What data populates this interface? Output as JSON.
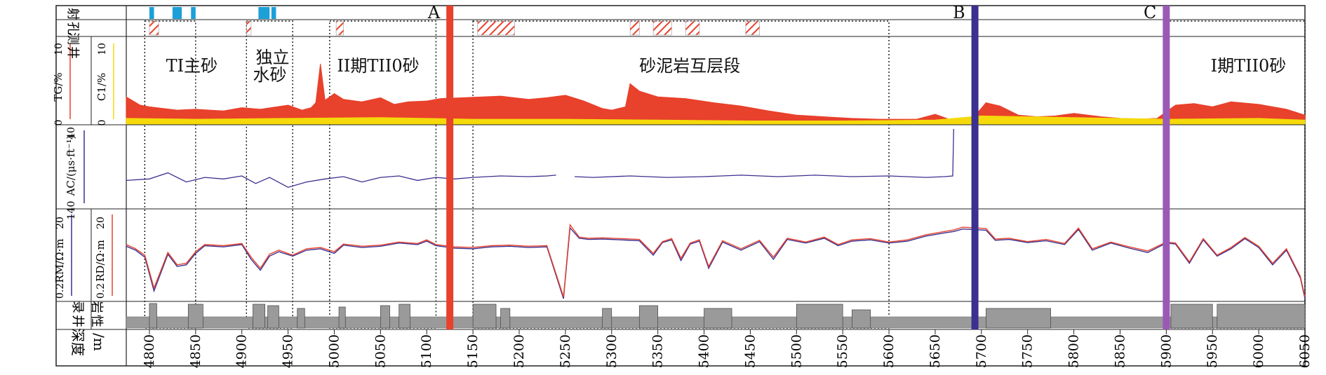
{
  "track_labels": {
    "perforation": [
      "射",
      "孔"
    ],
    "test": [
      "测",
      "井"
    ],
    "gas_left": "TG/%",
    "gas_right": "C1/%",
    "gas_left_min": "0",
    "gas_left_max": "10",
    "gas_right_min": "0",
    "gas_right_max": "10",
    "ac": "AC/(μs·ft⁻¹)",
    "ac_min": "140",
    "ac_max": "40",
    "res_left": "RM/Ω·m",
    "res_right": "RD/Ω·m",
    "res_min": "0.2",
    "res_max": "20",
    "lith": [
      "录",
      "井",
      "岩",
      "性"
    ],
    "depth": [
      "深度",
      "/m"
    ]
  },
  "markers": [
    {
      "label": "A",
      "depth": 5125,
      "color": "#e8412c"
    },
    {
      "label": "B",
      "depth": 5693,
      "color": "#3b2f8f"
    },
    {
      "label": "C",
      "depth": 5900,
      "color": "#9b59b6"
    }
  ],
  "zone_labels": [
    {
      "text": "TI主砂",
      "depth": 4818
    },
    {
      "text": "独立",
      "depth": 4915
    },
    {
      "text": "水砂",
      "depth": 4912
    },
    {
      "text": "II期TII0砂",
      "depth": 5003
    },
    {
      "text": "砂泥岩互层段",
      "depth": 5330
    },
    {
      "text": "I期TII0砂",
      "depth": 5948
    }
  ],
  "colors": {
    "tg": "#e8412c",
    "c1": "#f5d90a",
    "ac": "#3b2f8f",
    "rm": "#3b2f8f",
    "rd": "#e8412c",
    "perf": "#1ba0d8",
    "lith": "#9a9a9a",
    "grid": "#b5b5b5"
  },
  "chart_data": {
    "type": "line",
    "x_label": "深度/m",
    "x_range": [
      4775,
      6050
    ],
    "x_ticks": [
      4800,
      4850,
      4900,
      4950,
      5000,
      5050,
      5100,
      5150,
      5200,
      5250,
      5300,
      5350,
      5400,
      5450,
      5500,
      5550,
      5600,
      5650,
      5700,
      5750,
      5800,
      5850,
      5900,
      5950,
      6000,
      6050
    ],
    "zones": [
      [
        4795,
        4850
      ],
      [
        4905,
        4955
      ],
      [
        4995,
        5110
      ],
      [
        5150,
        5600
      ],
      [
        5900,
        6050
      ]
    ],
    "perforations": [
      [
        4800,
        4805
      ],
      [
        4825,
        4835
      ],
      [
        4845,
        4850
      ],
      [
        4918,
        4930
      ],
      [
        4932,
        4937
      ]
    ],
    "test_intervals": [
      [
        4800,
        4810
      ],
      [
        4905,
        4910
      ],
      [
        5002,
        5010
      ],
      [
        5155,
        5195
      ],
      [
        5320,
        5330
      ],
      [
        5345,
        5365
      ],
      [
        5380,
        5395
      ],
      [
        5445,
        5460
      ]
    ],
    "series": [
      {
        "name": "TG",
        "x": [
          4775,
          4790,
          4800,
          4815,
          4830,
          4850,
          4880,
          4900,
          4920,
          4950,
          4965,
          4975,
          4980,
          4985,
          4990,
          5000,
          5010,
          5030,
          5050,
          5065,
          5080,
          5100,
          5115,
          5140,
          5180,
          5210,
          5230,
          5250,
          5270,
          5290,
          5300,
          5315,
          5320,
          5330,
          5350,
          5380,
          5410,
          5440,
          5470,
          5500,
          5530,
          5560,
          5590,
          5610,
          5630,
          5650,
          5665,
          5680,
          5690,
          5705,
          5720,
          5740,
          5760,
          5780,
          5800,
          5830,
          5850,
          5870,
          5890,
          5910,
          5930,
          5950,
          5970,
          6000,
          6030,
          6050
        ],
        "values": [
          3.2,
          2.2,
          2.0,
          1.8,
          1.6,
          1.7,
          1.5,
          1.9,
          1.7,
          2.2,
          1.6,
          1.9,
          2.5,
          7.2,
          2.8,
          3.6,
          2.9,
          2.6,
          3.1,
          2.3,
          2.6,
          2.7,
          3.0,
          3.1,
          3.3,
          2.9,
          3.1,
          3.4,
          2.7,
          1.8,
          1.6,
          2.0,
          4.8,
          3.9,
          3.2,
          3.0,
          2.5,
          2.1,
          1.5,
          1.0,
          0.8,
          0.6,
          0.5,
          0.5,
          0.5,
          1.1,
          0.5,
          0.5,
          0.5,
          2.5,
          2.1,
          1.0,
          0.8,
          0.9,
          1.2,
          0.8,
          0.6,
          0.5,
          0.6,
          2.2,
          2.4,
          2.0,
          2.6,
          2.3,
          1.7,
          1.0
        ]
      },
      {
        "name": "C1",
        "x": [
          4775,
          4850,
          4950,
          5050,
          5150,
          5250,
          5350,
          5450,
          5550,
          5650,
          5700,
          5800,
          5900,
          6000,
          6050
        ],
        "values": [
          0.6,
          0.5,
          0.6,
          0.7,
          0.5,
          0.5,
          0.4,
          0.3,
          0.3,
          0.4,
          0.9,
          0.7,
          0.5,
          0.6,
          0.4
        ]
      },
      {
        "name": "AC",
        "x": [
          4775,
          4800,
          4820,
          4840,
          4860,
          4880,
          4900,
          4915,
          4930,
          4950,
          4970,
          4990,
          5010,
          5030,
          5050,
          5070,
          5090,
          5110,
          5130,
          5150,
          5180,
          5210,
          5230,
          5240,
          5250,
          5260,
          5280,
          5320,
          5360,
          5400,
          5440,
          5480,
          5520,
          5560,
          5600,
          5640,
          5660,
          5669,
          5670
        ],
        "values": [
          108,
          106,
          98,
          110,
          104,
          106,
          102,
          112,
          104,
          117,
          110,
          106,
          103,
          110,
          104,
          102,
          108,
          104,
          106,
          104,
          102,
          103,
          102,
          101,
          null,
          103,
          104,
          102,
          104,
          103,
          101,
          103,
          101,
          103,
          102,
          104,
          103,
          102,
          40
        ]
      },
      {
        "name": "RM",
        "x": [
          4775,
          4785,
          4795,
          4805,
          4820,
          4830,
          4840,
          4850,
          4860,
          4880,
          4900,
          4910,
          4920,
          4930,
          4940,
          4955,
          4970,
          4985,
          5000,
          5010,
          5030,
          5050,
          5070,
          5090,
          5100,
          5110,
          5130,
          5150,
          5170,
          5190,
          5210,
          5230,
          5248,
          5255,
          5265,
          5275,
          5290,
          5310,
          5330,
          5345,
          5355,
          5365,
          5375,
          5385,
          5395,
          5405,
          5420,
          5440,
          5460,
          5475,
          5490,
          5510,
          5530,
          5545,
          5560,
          5580,
          5600,
          5620,
          5640,
          5660,
          5670,
          5680,
          5705,
          5715,
          5730,
          5750,
          5770,
          5790,
          5805,
          5820,
          5840,
          5860,
          5880,
          5900,
          5910,
          5925,
          5940,
          5955,
          5970,
          5985,
          6000,
          6015,
          6030,
          6045,
          6050
        ],
        "values": [
          3.2,
          2.6,
          1.8,
          0.3,
          2.1,
          1.1,
          1.2,
          2.2,
          3.3,
          3.1,
          3.5,
          1.6,
          0.9,
          1.9,
          2.4,
          1.9,
          2.6,
          2.8,
          2.2,
          3.4,
          3.0,
          3.2,
          3.8,
          3.5,
          4.2,
          3.3,
          2.9,
          2.8,
          3.1,
          3.2,
          3.0,
          3.1,
          0.2,
          8.5,
          4.9,
          4.6,
          4.7,
          4.5,
          4.3,
          2.0,
          3.9,
          4.5,
          1.5,
          3.6,
          4.2,
          1.0,
          4.0,
          2.6,
          4.1,
          1.6,
          4.6,
          3.8,
          4.9,
          3.3,
          4.2,
          4.5,
          3.8,
          4.2,
          5.5,
          6.5,
          7.0,
          8.0,
          7.5,
          4.4,
          4.6,
          3.9,
          4.3,
          3.5,
          7.8,
          2.6,
          3.8,
          2.9,
          2.3,
          3.8,
          3.6,
          1.3,
          4.5,
          1.9,
          2.8,
          4.8,
          3.0,
          1.2,
          2.6,
          0.6,
          0.2
        ]
      },
      {
        "name": "RD",
        "x": [
          4775,
          4785,
          4795,
          4805,
          4820,
          4830,
          4840,
          4850,
          4860,
          4880,
          4900,
          4910,
          4920,
          4930,
          4940,
          4955,
          4970,
          4985,
          5000,
          5010,
          5030,
          5050,
          5070,
          5090,
          5100,
          5110,
          5130,
          5150,
          5170,
          5190,
          5210,
          5230,
          5248,
          5255,
          5265,
          5275,
          5290,
          5310,
          5330,
          5345,
          5355,
          5365,
          5375,
          5385,
          5395,
          5405,
          5420,
          5440,
          5460,
          5475,
          5490,
          5510,
          5530,
          5545,
          5560,
          5580,
          5600,
          5620,
          5640,
          5660,
          5670,
          5680,
          5705,
          5715,
          5730,
          5750,
          5770,
          5790,
          5805,
          5820,
          5840,
          5860,
          5880,
          5900,
          5910,
          5925,
          5940,
          5955,
          5970,
          5985,
          6000,
          6015,
          6030,
          6045,
          6050
        ],
        "values": [
          3.5,
          2.8,
          2.0,
          0.35,
          2.3,
          1.2,
          1.3,
          2.4,
          3.5,
          3.3,
          3.7,
          1.8,
          1.0,
          2.1,
          2.6,
          2.0,
          2.8,
          3.0,
          2.4,
          3.6,
          3.2,
          3.4,
          4.0,
          3.7,
          4.5,
          3.5,
          3.1,
          3.0,
          3.3,
          3.4,
          3.2,
          3.3,
          0.22,
          10.0,
          5.2,
          4.9,
          5.0,
          4.8,
          4.6,
          2.2,
          4.1,
          4.8,
          1.7,
          3.8,
          4.5,
          1.1,
          4.3,
          2.8,
          4.4,
          1.8,
          4.9,
          4.0,
          5.2,
          3.5,
          4.5,
          4.8,
          4.0,
          4.5,
          5.9,
          7.0,
          7.6,
          8.8,
          8.2,
          4.7,
          4.9,
          4.1,
          4.6,
          3.7,
          8.4,
          2.8,
          4.0,
          3.1,
          2.5,
          4.0,
          3.8,
          1.4,
          4.8,
          2.0,
          3.0,
          5.1,
          3.2,
          1.3,
          2.8,
          0.65,
          0.22
        ]
      }
    ]
  }
}
